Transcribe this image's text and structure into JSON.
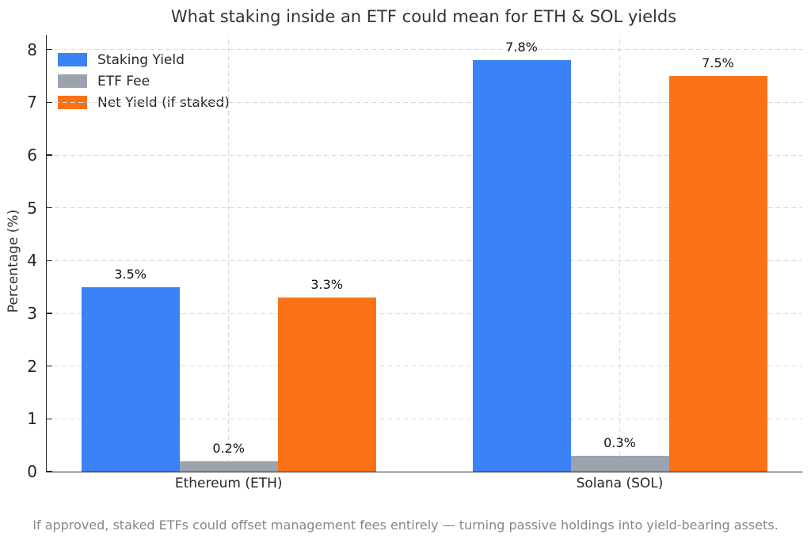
{
  "title": "What staking inside an ETF could mean for ETH & SOL yields",
  "footer": "If approved, staked ETFs could offset management fees entirely — turning passive holdings into yield-bearing assets.",
  "colors": {
    "staking_yield": "#3b82f6",
    "etf_fee": "#9ca3af",
    "net_yield": "#f97316",
    "grid": "#d9d9d9",
    "axis": "#262626",
    "title_text": "#333333",
    "value_label_text": "#111111",
    "footer_text": "#878787"
  },
  "chart_data": {
    "type": "bar",
    "title": "What staking inside an ETF could mean for ETH & SOL yields",
    "xlabel": "",
    "ylabel": "Percentage (%)",
    "categories": [
      "Ethereum (ETH)",
      "Solana (SOL)"
    ],
    "series": [
      {
        "name": "Staking Yield",
        "color": "#3b82f6",
        "values": [
          3.5,
          7.8
        ],
        "labels": [
          "3.5%",
          "7.8%"
        ]
      },
      {
        "name": "ETF Fee",
        "color": "#9ca3af",
        "values": [
          0.2,
          0.3
        ],
        "labels": [
          "0.2%",
          "0.3%"
        ]
      },
      {
        "name": "Net Yield (if staked)",
        "color": "#f97316",
        "values": [
          3.3,
          7.5
        ],
        "labels": [
          "3.3%",
          "7.5%"
        ]
      }
    ],
    "ylim": [
      0,
      8.28
    ],
    "yticks": [
      0,
      1,
      2,
      3,
      4,
      5,
      6,
      7,
      8
    ],
    "grid": "dashed-both-axes",
    "legend_position": "upper-left",
    "annotation": "If approved, staked ETFs could offset management fees entirely — turning passive holdings into yield-bearing assets."
  }
}
